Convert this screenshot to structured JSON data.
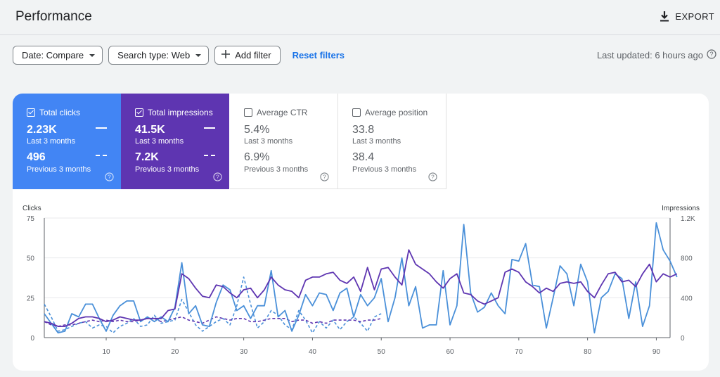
{
  "header": {
    "title": "Performance",
    "export_label": "EXPORT"
  },
  "filters": {
    "date_label": "Date: Compare",
    "search_type_label": "Search type: Web",
    "add_filter_label": "Add filter",
    "reset_label": "Reset filters"
  },
  "last_updated": "Last updated: 6 hours ago",
  "metrics": [
    {
      "title": "Total clicks",
      "checked": true,
      "value": "2.23K",
      "period": "Last 3 months",
      "prev_value": "496",
      "prev_period": "Previous 3 months"
    },
    {
      "title": "Total impressions",
      "checked": true,
      "value": "41.5K",
      "period": "Last 3 months",
      "prev_value": "7.2K",
      "prev_period": "Previous 3 months"
    },
    {
      "title": "Average CTR",
      "checked": false,
      "value": "5.4%",
      "period": "Last 3 months",
      "prev_value": "6.9%",
      "prev_period": "Previous 3 months"
    },
    {
      "title": "Average position",
      "checked": false,
      "value": "33.8",
      "period": "Last 3 months",
      "prev_value": "38.4",
      "prev_period": "Previous 3 months"
    }
  ],
  "colors": {
    "clicks": "#4a90d9",
    "impressions": "#5e35b1",
    "accent": "#1a73e8"
  },
  "chart_data": {
    "type": "line",
    "ylabel_left": "Clicks",
    "ylabel_right": "Impressions",
    "ylim_left": [
      0,
      75
    ],
    "ylim_right": [
      0,
      1200
    ],
    "yticks_left": [
      "0",
      "25",
      "50",
      "75"
    ],
    "yticks_right": [
      "0",
      "400",
      "800",
      "1.2K"
    ],
    "xlim": [
      1,
      92
    ],
    "xticks": [
      10,
      20,
      30,
      40,
      50,
      60,
      70,
      80,
      90
    ],
    "grid": true,
    "series": [
      {
        "metric": "clicks",
        "period": "current",
        "axis": "left",
        "style": "solid",
        "color": "#4a90d9",
        "values": [
          15,
          9,
          3,
          4,
          15,
          13,
          21,
          21,
          12,
          4,
          14,
          20,
          23,
          23,
          10,
          13,
          10,
          13,
          10,
          19,
          47,
          15,
          20,
          8,
          7,
          22,
          33,
          30,
          17,
          20,
          12,
          20,
          20,
          42,
          13,
          17,
          4,
          14,
          27,
          20,
          28,
          27,
          17,
          28,
          31,
          13,
          27,
          20,
          25,
          37,
          10,
          25,
          50,
          20,
          32,
          6,
          8,
          8,
          42,
          8,
          20,
          71,
          28,
          16,
          19,
          28,
          20,
          15,
          49,
          48,
          59,
          33,
          32,
          6,
          25,
          45,
          40,
          20,
          46,
          35,
          3,
          25,
          29,
          40,
          37,
          12,
          35,
          7,
          20,
          72,
          55,
          48,
          38
        ]
      },
      {
        "metric": "impressions",
        "period": "current",
        "axis": "left",
        "style": "solid",
        "color": "#5e35b1",
        "values": [
          10,
          9,
          7,
          7,
          9,
          12,
          13,
          13,
          12,
          10,
          11,
          13,
          12,
          11,
          11,
          12,
          12,
          12,
          17,
          18,
          40,
          37,
          31,
          26,
          25,
          33,
          32,
          28,
          25,
          30,
          31,
          25,
          30,
          38,
          33,
          30,
          29,
          25,
          36,
          38,
          38,
          40,
          41,
          36,
          34,
          38,
          29,
          44,
          30,
          43,
          44,
          38,
          33,
          55,
          46,
          43,
          40,
          35,
          31,
          37,
          40,
          28,
          27,
          23,
          21,
          23,
          25,
          41,
          43,
          41,
          35,
          32,
          28,
          31,
          29,
          34,
          35,
          34,
          35,
          29,
          25,
          33,
          40,
          41,
          35,
          36,
          32,
          40,
          46,
          35,
          40,
          38,
          40
        ]
      },
      {
        "metric": "clicks",
        "period": "previous",
        "axis": "left",
        "style": "dashed",
        "color": "#4a90d9",
        "values": [
          21,
          13,
          4,
          5,
          7,
          9,
          10,
          6,
          8,
          7,
          3,
          7,
          9,
          12,
          7,
          8,
          14,
          9,
          10,
          11,
          24,
          16,
          8,
          4,
          7,
          10,
          12,
          8,
          20,
          38,
          21,
          6,
          10,
          17,
          14,
          8,
          5,
          17,
          11,
          3,
          10,
          6,
          11,
          5,
          10,
          13,
          9,
          4,
          13,
          15
        ]
      },
      {
        "metric": "impressions",
        "period": "previous",
        "axis": "left",
        "style": "dashed",
        "color": "#5e35b1",
        "values": [
          10,
          8,
          7,
          8,
          8,
          9,
          10,
          11,
          10,
          11,
          10,
          11,
          10,
          10,
          11,
          12,
          12,
          10,
          11,
          12,
          13,
          11,
          10,
          9,
          11,
          13,
          12,
          11,
          12,
          12,
          10,
          10,
          11,
          12,
          12,
          12,
          10,
          11,
          11,
          9,
          10,
          9,
          11,
          11,
          11,
          11,
          10,
          11,
          11,
          12
        ]
      }
    ]
  }
}
